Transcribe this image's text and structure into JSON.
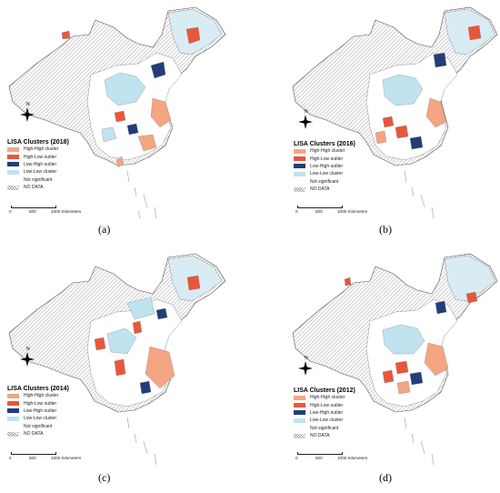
{
  "colors": {
    "high_high": "#f4a582",
    "high_low": "#e8573a",
    "low_high": "#233d78",
    "low_low": "#bfe3ef",
    "not_significant": "#ffffff",
    "no_data_hatch": "#8c8c8c"
  },
  "compass_label": "N",
  "legend_items": [
    {
      "label": "High-High cluster",
      "color_key": "high_high"
    },
    {
      "label": "High-Low outlier",
      "color_key": "high_low"
    },
    {
      "label": "Low-High outlier",
      "color_key": "low_high"
    },
    {
      "label": "Low-Low cluster",
      "color_key": "low_low"
    },
    {
      "label": "Not significant",
      "color_key": "not_significant"
    },
    {
      "label": "NO DATA",
      "color_key": "no_data_hatch"
    }
  ],
  "scale": {
    "ticks": [
      "0",
      "500",
      "1000 Kilometers"
    ]
  },
  "panels": [
    {
      "title": "LISA Clusters (2018)",
      "caption": "(a)"
    },
    {
      "title": "LISA Clusters (2016)",
      "caption": "(b)"
    },
    {
      "title": "LISA Clusters (2014)",
      "caption": "(c)"
    },
    {
      "title": "LISA Clusters (2012)",
      "caption": "(d)"
    }
  ]
}
